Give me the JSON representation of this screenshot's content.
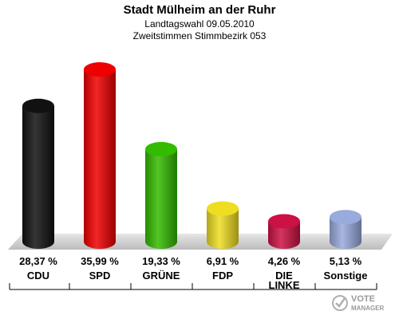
{
  "chart_data": {
    "type": "bar",
    "title": "Stadt Mülheim an der Ruhr",
    "subtitle1": "Landtagswahl 09.05.2010",
    "subtitle2": "Zweitstimmen Stimmbezirk 053",
    "categories": [
      {
        "label": "CDU"
      },
      {
        "label": "SPD"
      },
      {
        "label": "GRÜNE"
      },
      {
        "label": "FDP"
      },
      {
        "label1": "DIE",
        "label2": "LINKE"
      },
      {
        "label": "Sonstige"
      }
    ],
    "values": [
      28.37,
      35.99,
      19.33,
      6.91,
      4.26,
      5.13
    ],
    "value_labels": [
      "28,37 %",
      "35,99 %",
      "19,33 %",
      "6,91 %",
      "4,26 %",
      "5,13 %"
    ],
    "colors": [
      "#111111",
      "#ee0000",
      "#33bb00",
      "#eedd22",
      "#cc1144",
      "#99aadd"
    ],
    "ylim": [
      0,
      40
    ],
    "grid": false
  },
  "logo": {
    "line1": "VOTE",
    "line2": "MANAGER"
  }
}
